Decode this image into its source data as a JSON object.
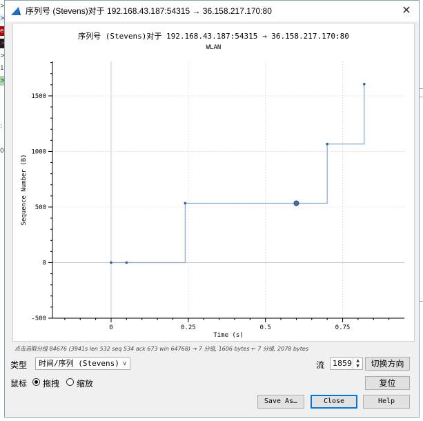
{
  "window": {
    "title": "序列号 (Stevens)对于 192.168.43.187:54315 → 36.158.217.170:80",
    "close_glyph": "✕"
  },
  "chart_data": {
    "type": "line",
    "title": "序列号 (Stevens)对于 192.168.43.187:54315 → 36.158.217.170:80",
    "subtitle": "WLAN",
    "xlabel": "Time (s)",
    "ylabel": "Sequence Number (B)",
    "xlim": [
      -0.19,
      0.95
    ],
    "ylim": [
      -500,
      1810
    ],
    "x_ticks": [
      0,
      0.25,
      0.5,
      0.75
    ],
    "x_tick_labels": [
      "0",
      "0.25",
      "0.5",
      "0.75"
    ],
    "y_ticks": [
      -500,
      0,
      500,
      1000,
      1500
    ],
    "y_tick_labels": [
      "-500",
      "0",
      "500",
      "1000",
      "1500"
    ],
    "grid": true,
    "series": [
      {
        "points": [
          [
            0,
            0
          ],
          [
            0.05,
            0
          ],
          [
            0.24,
            534
          ],
          [
            0.7,
            1067
          ],
          [
            0.82,
            1606
          ]
        ],
        "highlighted_point": [
          0.6,
          534
        ],
        "color": "#2f5f9e",
        "step_color": "#8aa8cf"
      }
    ]
  },
  "hint": "点击选取分组 84676 (3941s len 532 seq 534 ack 673 win 64768) → 7 分组, 1606 bytes ← 7 分组, 2078 bytes",
  "controls": {
    "type_label": "类型",
    "type_value": "时间/序列 (Stevens)",
    "mouse_label": "鼠标",
    "drag_label": "拖拽",
    "zoom_label": "缩放",
    "stream_label": "流",
    "stream_value": "1859",
    "switch_direction": "切换方向",
    "reset": "复位",
    "save_as": "Save As…",
    "close": "Close",
    "help": "Help"
  },
  "background_fragments": [
    ">",
    ">",
    "e",
    ">",
    ">",
    "1;",
    ">",
    ":",
    "0"
  ]
}
